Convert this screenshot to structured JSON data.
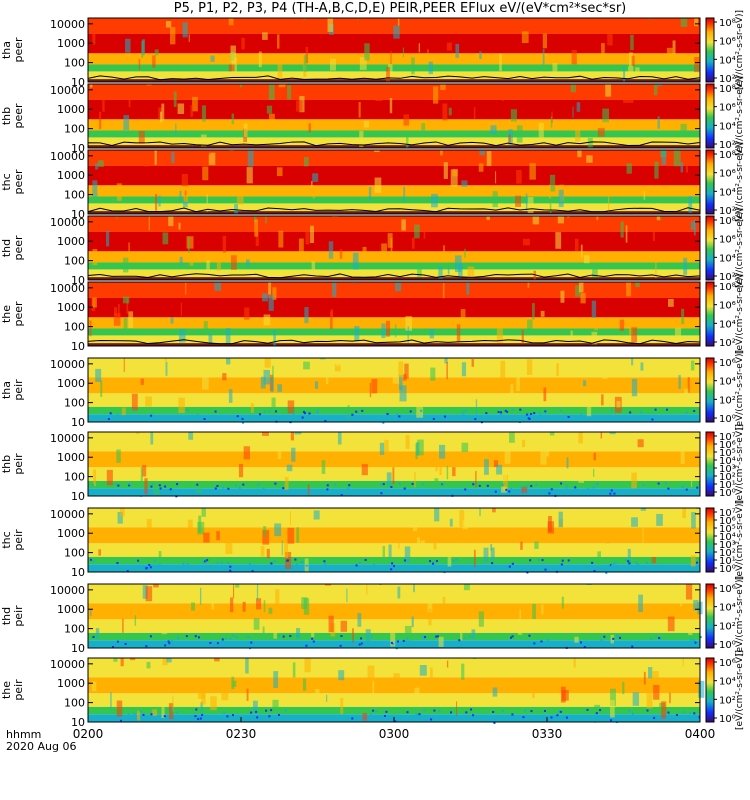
{
  "title": "P5, P1, P2, P3, P4 (TH-A,B,C,D,E) PEIR,PEER EFlux eV/(eV*cm²*sec*sr)",
  "colorbar_units": "[eV/(cm²-s-sr-eV)]",
  "time_axis": {
    "label_line1": "hhmm",
    "label_line2": "2020 Aug 06",
    "ticks": [
      "0200",
      "0230",
      "0300",
      "0330",
      "0400"
    ],
    "range": [
      "02:00",
      "04:00"
    ]
  },
  "colors": {
    "saturated": "#d90000",
    "high": "#ff3c00",
    "mid_high": "#ffb000",
    "mid": "#f2e23a",
    "low": "#35c650",
    "lower": "#18b0c8",
    "lowest": "#1030ff",
    "floor": "#6a1a1a"
  },
  "chart_data": [
    {
      "type": "heatmap",
      "probe": "tha",
      "species": "peer",
      "ylabel": "tha\npeer",
      "yticks": [
        "10",
        "100",
        "1000",
        "10000"
      ],
      "yscale": "log",
      "colorbar": [
        "10²",
        "10⁴",
        "10⁶",
        "10⁸"
      ],
      "ylim": [
        10,
        20000
      ]
    },
    {
      "type": "heatmap",
      "probe": "thb",
      "species": "peer",
      "ylabel": "thb\npeer",
      "yticks": [
        "10",
        "100",
        "1000",
        "10000"
      ],
      "yscale": "log",
      "colorbar": [
        "10²",
        "10⁴",
        "10⁶",
        "10⁸"
      ],
      "ylim": [
        10,
        20000
      ]
    },
    {
      "type": "heatmap",
      "probe": "thc",
      "species": "peer",
      "ylabel": "thc\npeer",
      "yticks": [
        "10",
        "100",
        "1000",
        "10000"
      ],
      "yscale": "log",
      "colorbar": [
        "10²",
        "10⁴",
        "10⁶",
        "10⁸"
      ],
      "ylim": [
        10,
        20000
      ]
    },
    {
      "type": "heatmap",
      "probe": "thd",
      "species": "peer",
      "ylabel": "thd\npeer",
      "yticks": [
        "10",
        "100",
        "1000",
        "10000"
      ],
      "yscale": "log",
      "colorbar": [
        "10²",
        "10⁴",
        "10⁶",
        "10⁸"
      ],
      "ylim": [
        10,
        20000
      ]
    },
    {
      "type": "heatmap",
      "probe": "the",
      "species": "peer",
      "ylabel": "the\npeer",
      "yticks": [
        "10",
        "100",
        "1000",
        "10000"
      ],
      "yscale": "log",
      "colorbar": [
        "10²",
        "10⁴",
        "10⁶",
        "10⁸"
      ],
      "ylim": [
        10,
        20000
      ]
    },
    {
      "type": "heatmap",
      "probe": "tha",
      "species": "peir",
      "ylabel": "tha\npeir",
      "yticks": [
        "10",
        "100",
        "1000",
        "10000"
      ],
      "yscale": "log",
      "colorbar": [
        "10⁰",
        "10²",
        "10⁴",
        "10⁶"
      ],
      "ylim": [
        10,
        20000
      ]
    },
    {
      "type": "heatmap",
      "probe": "thb",
      "species": "peir",
      "ylabel": "thb\npeir",
      "yticks": [
        "10",
        "100",
        "1000",
        "10000"
      ],
      "yscale": "log",
      "colorbar": [
        "10⁰",
        "10¹",
        "10²",
        "10³",
        "10⁴",
        "10⁵",
        "10⁶",
        "10⁷"
      ],
      "ylim": [
        10,
        20000
      ]
    },
    {
      "type": "heatmap",
      "probe": "thc",
      "species": "peir",
      "ylabel": "thc\npeir",
      "yticks": [
        "10",
        "100",
        "1000",
        "10000"
      ],
      "yscale": "log",
      "colorbar": [
        "10⁰",
        "10¹",
        "10²",
        "10³",
        "10⁴",
        "10⁵",
        "10⁶",
        "10⁷"
      ],
      "ylim": [
        10,
        20000
      ]
    },
    {
      "type": "heatmap",
      "probe": "thd",
      "species": "peir",
      "ylabel": "thd\npeir",
      "yticks": [
        "10",
        "100",
        "1000",
        "10000"
      ],
      "yscale": "log",
      "colorbar": [
        "10⁰",
        "10²",
        "10⁴",
        "10⁶"
      ],
      "ylim": [
        10,
        20000
      ]
    },
    {
      "type": "heatmap",
      "probe": "the",
      "species": "peir",
      "ylabel": "the\npeir",
      "yticks": [
        "10",
        "100",
        "1000",
        "10000"
      ],
      "yscale": "log",
      "colorbar": [
        "10⁰",
        "10²",
        "10⁴",
        "10⁶"
      ],
      "ylim": [
        10,
        20000
      ]
    }
  ]
}
